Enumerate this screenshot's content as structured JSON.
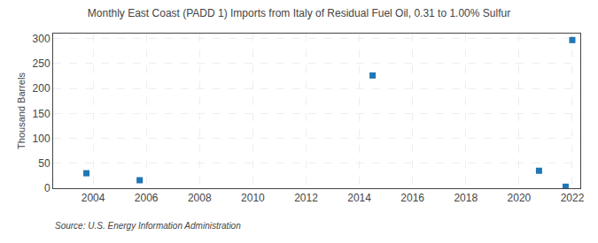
{
  "chart_data": {
    "type": "scatter",
    "title": "Monthly East Coast (PADD 1) Imports from Italy of Residual Fuel Oil, 0.31 to 1.00% Sulfur",
    "ylabel": "Thousand Barrels",
    "annotations": [
      "Source: U.S. Energy Information Administration"
    ],
    "x": [
      2003.75,
      2005.75,
      2014.5,
      2020.75,
      2021.75,
      2022.0
    ],
    "values": [
      30,
      16,
      226,
      35,
      3,
      297
    ],
    "marker": "square",
    "xlim": [
      2002.5,
      2022.3
    ],
    "ylim": [
      0,
      310
    ],
    "xticks": [
      2004,
      2006,
      2008,
      2010,
      2012,
      2014,
      2016,
      2018,
      2020,
      2022
    ],
    "yticks": [
      0,
      50,
      100,
      150,
      200,
      250,
      300
    ],
    "grid": true
  }
}
